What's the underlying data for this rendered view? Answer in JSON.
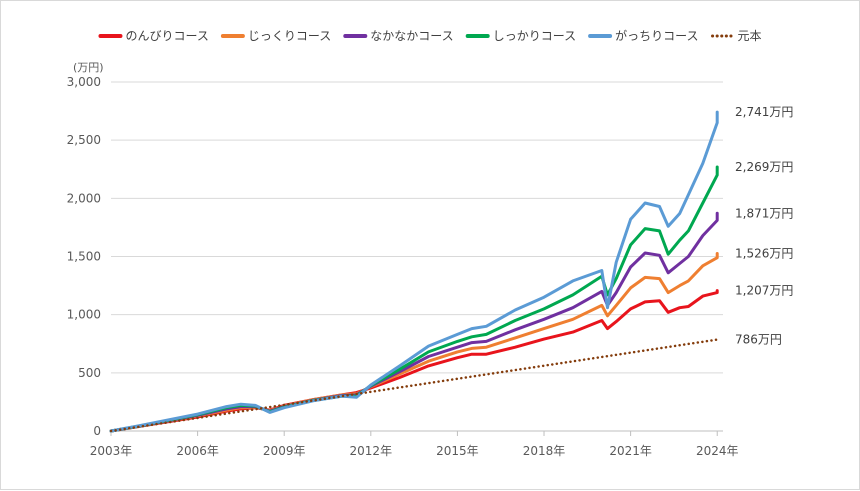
{
  "chart_data": {
    "type": "line",
    "title": "",
    "ylabel": "",
    "y_unit": "(万円)",
    "ylim": [
      0,
      3000
    ],
    "y_ticks": [
      0,
      500,
      1000,
      1500,
      2000,
      2500,
      3000
    ],
    "y_tick_labels": [
      "0",
      "500",
      "1,000",
      "1,500",
      "2,000",
      "2,500",
      "3,000"
    ],
    "xlim": [
      2003,
      2024.2
    ],
    "x_ticks": [
      2003,
      2006,
      2009,
      2012,
      2015,
      2018,
      2021,
      2024
    ],
    "x_tick_labels": [
      "2003年",
      "2006年",
      "2009年",
      "2012年",
      "2015年",
      "2018年",
      "2021年",
      "2024年"
    ],
    "grid": true,
    "legend_position": "top",
    "series": [
      {
        "name": "のんびりコース",
        "color": "#e8141c",
        "style": "solid",
        "end_label": "1,207万円",
        "x": [
          2003,
          2004,
          2005,
          2006,
          2007,
          2007.5,
          2008,
          2008.5,
          2009,
          2010,
          2011,
          2011.5,
          2012,
          2013,
          2014,
          2015,
          2015.5,
          2016,
          2017,
          2018,
          2019,
          2020,
          2020.2,
          2020.5,
          2021,
          2021.5,
          2022,
          2022.3,
          2022.7,
          2023,
          2023.5,
          2024,
          2024
        ],
        "y": [
          0,
          40,
          80,
          120,
          170,
          190,
          200,
          180,
          220,
          270,
          310,
          330,
          370,
          460,
          560,
          630,
          660,
          660,
          720,
          790,
          850,
          950,
          880,
          940,
          1050,
          1110,
          1120,
          1020,
          1060,
          1070,
          1160,
          1190,
          1207
        ]
      },
      {
        "name": "じっくりコース",
        "color": "#ef7f31",
        "style": "solid",
        "end_label": "1,526万円",
        "x": [
          2003,
          2004,
          2005,
          2006,
          2007,
          2007.5,
          2008,
          2008.5,
          2009,
          2010,
          2011,
          2011.5,
          2012,
          2013,
          2014,
          2015,
          2015.5,
          2016,
          2017,
          2018,
          2019,
          2020,
          2020.2,
          2020.5,
          2021,
          2021.5,
          2022,
          2022.3,
          2022.7,
          2023,
          2023.5,
          2024,
          2024
        ],
        "y": [
          0,
          40,
          85,
          130,
          180,
          200,
          205,
          175,
          215,
          270,
          310,
          320,
          380,
          490,
          600,
          680,
          710,
          720,
          800,
          880,
          960,
          1080,
          990,
          1080,
          1230,
          1320,
          1310,
          1190,
          1250,
          1290,
          1420,
          1490,
          1526
        ]
      },
      {
        "name": "なかなかコース",
        "color": "#7030a0",
        "style": "solid",
        "end_label": "1,871万円",
        "x": [
          2003,
          2004,
          2005,
          2006,
          2007,
          2007.5,
          2008,
          2008.5,
          2009,
          2010,
          2011,
          2011.5,
          2012,
          2013,
          2014,
          2015,
          2015.5,
          2016,
          2017,
          2018,
          2019,
          2020,
          2020.2,
          2020.5,
          2021,
          2021.5,
          2022,
          2022.3,
          2022.7,
          2023,
          2023.5,
          2024,
          2024
        ],
        "y": [
          0,
          42,
          88,
          135,
          190,
          210,
          210,
          170,
          210,
          265,
          305,
          310,
          385,
          510,
          640,
          720,
          760,
          770,
          870,
          960,
          1060,
          1200,
          1080,
          1190,
          1410,
          1530,
          1510,
          1360,
          1440,
          1500,
          1680,
          1810,
          1871
        ]
      },
      {
        "name": "しっかりコース",
        "color": "#00a850",
        "style": "solid",
        "end_label": "2,269万円",
        "x": [
          2003,
          2004,
          2005,
          2006,
          2007,
          2007.5,
          2008,
          2008.5,
          2009,
          2010,
          2011,
          2011.5,
          2012,
          2013,
          2014,
          2015,
          2015.5,
          2016,
          2017,
          2018,
          2019,
          2020,
          2020.2,
          2020.5,
          2021,
          2021.5,
          2022,
          2022.3,
          2022.7,
          2023,
          2023.5,
          2024,
          2024
        ],
        "y": [
          0,
          44,
          92,
          140,
          200,
          220,
          215,
          165,
          205,
          262,
          300,
          300,
          390,
          530,
          680,
          770,
          810,
          830,
          950,
          1050,
          1170,
          1330,
          1170,
          1310,
          1600,
          1740,
          1720,
          1520,
          1640,
          1720,
          1960,
          2200,
          2269
        ]
      },
      {
        "name": "がっちりコース",
        "color": "#5b9bd5",
        "style": "solid",
        "end_label": "2,741万円",
        "x": [
          2003,
          2004,
          2005,
          2006,
          2007,
          2007.5,
          2008,
          2008.5,
          2009,
          2010,
          2011,
          2011.5,
          2012,
          2013,
          2014,
          2015,
          2015.5,
          2016,
          2017,
          2018,
          2019,
          2020,
          2020.2,
          2020.5,
          2021,
          2021.5,
          2022,
          2022.3,
          2022.7,
          2023,
          2023.5,
          2024,
          2024
        ],
        "y": [
          0,
          46,
          96,
          145,
          210,
          230,
          220,
          160,
          200,
          260,
          300,
          290,
          395,
          560,
          730,
          830,
          880,
          900,
          1040,
          1150,
          1290,
          1380,
          1060,
          1450,
          1820,
          1960,
          1930,
          1760,
          1870,
          2030,
          2300,
          2650,
          2741
        ]
      },
      {
        "name": "元本",
        "color": "#843c0c",
        "style": "dotted",
        "end_label": "786万円",
        "x": [
          2003,
          2024
        ],
        "y": [
          0,
          786
        ]
      }
    ]
  }
}
